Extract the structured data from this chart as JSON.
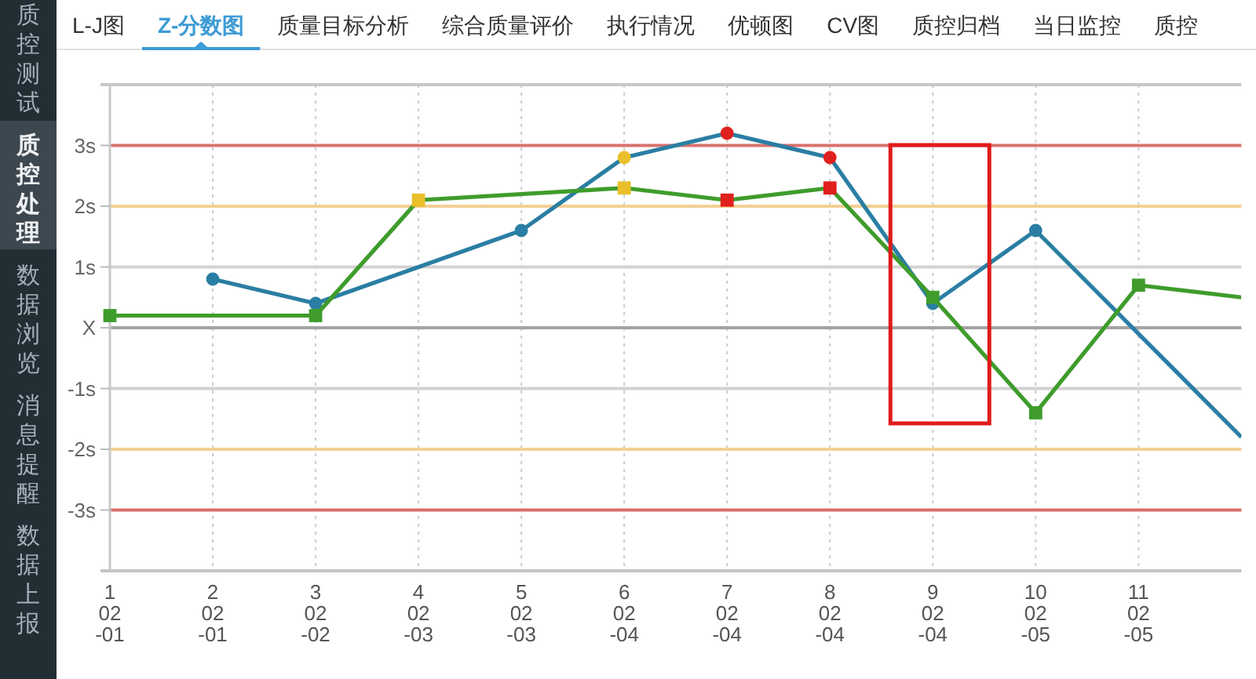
{
  "chart_data": {
    "type": "line",
    "title": "Z-分数图",
    "annotations": [
      "L-J图",
      "质量目标分析",
      "综合质量评价",
      "执行情况",
      "优顿图",
      "CV图",
      "质控归档",
      "当日监控",
      "质控",
      "质控测试",
      "质控处理",
      "数据浏览",
      "消息提醒",
      "数据上报"
    ],
    "categories": [
      "1\n02\n-01",
      "2\n02\n-01",
      "3\n02\n-02",
      "4\n02\n-03",
      "5\n02\n-03",
      "6\n02\n-04",
      "7\n02\n-04",
      "8\n02\n-04",
      "9\n02\n-04",
      "10\n02\n-05",
      "11\n02\n-05",
      null
    ],
    "ylim": [
      -4,
      4
    ],
    "yticks": [
      {
        "value": -3,
        "label": "-3s"
      },
      {
        "value": -2,
        "label": "-2s"
      },
      {
        "value": -1,
        "label": "-1s"
      },
      {
        "value": 0,
        "label": "X"
      },
      {
        "value": 1,
        "label": "1s"
      },
      {
        "value": 2,
        "label": "2s"
      },
      {
        "value": 3,
        "label": "3s"
      }
    ],
    "grid": "x",
    "ref_lines": [
      {
        "axis": "y",
        "value": 3,
        "color": "#d8716c"
      },
      {
        "axis": "y",
        "value": 2,
        "color": "#f4cf93"
      },
      {
        "axis": "y",
        "value": 1,
        "color": "#d2d2d2"
      },
      {
        "axis": "y",
        "value": 0,
        "color": "#a3a3a3"
      },
      {
        "axis": "y",
        "value": -1,
        "color": "#d2d2d2"
      },
      {
        "axis": "y",
        "value": -2,
        "color": "#f4cf93"
      },
      {
        "axis": "y",
        "value": -3,
        "color": "#d8716c"
      }
    ],
    "series": [
      {
        "color": "#2a7ea3",
        "marker": "circle",
        "values": [
          null,
          0.8,
          0.4,
          null,
          1.6,
          2.8,
          3.2,
          2.8,
          0.4,
          1.6,
          null,
          -1.8
        ],
        "colors": [
          null,
          "#2a7ea3",
          "#2a7ea3",
          null,
          "#2a7ea3",
          "#e9c02a",
          "#e0201c",
          "#e0201c",
          "#2a7ea3",
          "#2a7ea3",
          null,
          null
        ]
      },
      {
        "color": "#3f9c2c",
        "marker": "square",
        "values": [
          0.2,
          null,
          0.2,
          2.1,
          null,
          2.3,
          2.1,
          2.3,
          0.5,
          -1.4,
          0.7,
          0.5
        ],
        "colors": [
          "#3f9c2c",
          null,
          "#3f9c2c",
          "#e9c02a",
          null,
          "#e9c02a",
          "#e0201c",
          "#e0201c",
          "#3f9c2c",
          "#3f9c2c",
          "#3f9c2c",
          null
        ]
      }
    ]
  }
}
